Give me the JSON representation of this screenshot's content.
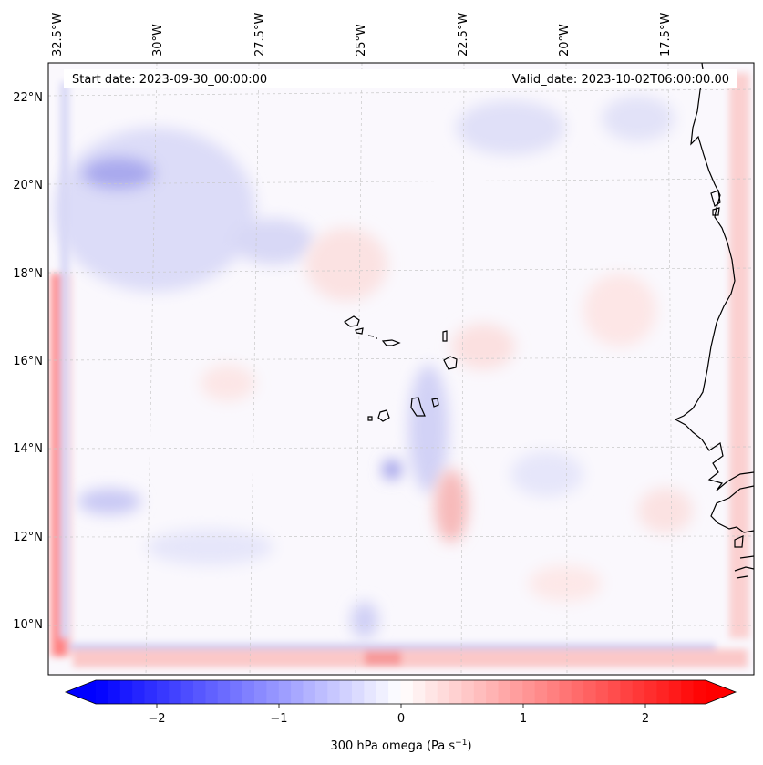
{
  "header": {
    "start_date": "Start date: 2023-09-30_00:00:00",
    "valid_date": "Valid_date: 2023-10-02T06:00:00.00"
  },
  "lon_labels": [
    "32.5°W",
    "30°W",
    "27.5°W",
    "25°W",
    "22.5°W",
    "20°W",
    "17.5°W"
  ],
  "lat_labels": [
    "22°N",
    "20°N",
    "18°N",
    "16°N",
    "14°N",
    "12°N",
    "10°N"
  ],
  "colorbar": {
    "tick_labels": [
      "−2",
      "−1",
      "0",
      "1",
      "2"
    ],
    "title_main": "300 hPa omega (Pa s",
    "title_sup": "−1",
    "title_end": ")",
    "range": [
      -2.7,
      2.7
    ]
  },
  "colors": {
    "negative": "#0000ff",
    "neutral": "#ffffff",
    "positive": "#ff0000",
    "coast": "#000000"
  }
}
